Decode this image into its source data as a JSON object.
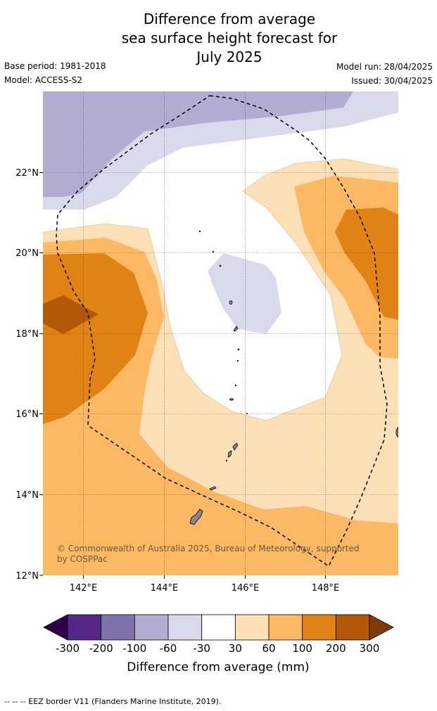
{
  "title_lines": [
    "Difference from average",
    "sea surface height forecast for",
    "July 2025"
  ],
  "meta": {
    "base_period": "Base period: 1981-2018",
    "model": "Model: ACCESS-S2",
    "model_run": "Model run: 28/04/2025",
    "issued": "Issued: 30/04/2025"
  },
  "map": {
    "lat_labels": [
      "22°N",
      "20°N",
      "18°N",
      "16°N",
      "14°N",
      "12°N"
    ],
    "lon_labels": [
      "142°E",
      "144°E",
      "146°E",
      "148°E"
    ],
    "credit_line1": "© Commonwealth of Australia 2025, Bureau of Meteorology, supported",
    "credit_line2": "by COSPPac",
    "land_color": "#888888",
    "eez_style": "dashed"
  },
  "colorbar": {
    "colors": [
      "#2d004b",
      "#542788",
      "#8073ac",
      "#b2abd2",
      "#d8daeb",
      "#ffffff",
      "#fee0b6",
      "#fdb863",
      "#e08214",
      "#b35806",
      "#7f3b08"
    ],
    "tick_labels": [
      "-300",
      "-200",
      "-100",
      "-60",
      "-30",
      "30",
      "60",
      "100",
      "200",
      "300"
    ],
    "title": "Difference from average (mm)"
  },
  "footer": "--  --  -- EEZ border V11 (Flanders Marine Institute, 2019)."
}
